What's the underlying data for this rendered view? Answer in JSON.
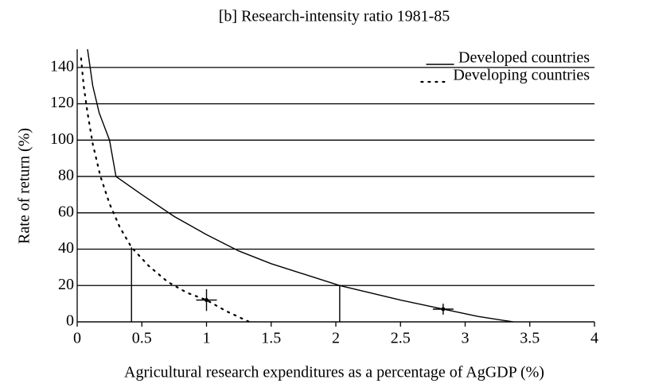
{
  "chart_data": {
    "type": "line",
    "title": "[b] Research-intensity ratio 1981-85",
    "x_label": "Agricultural research expenditures as a percentage of AgGDP (%)",
    "y_label": "Rate of return (%)",
    "xlim": [
      0,
      4
    ],
    "ylim": [
      0,
      150
    ],
    "xticks": [
      0,
      0.5,
      1,
      1.5,
      2,
      2.5,
      3,
      3.5,
      4
    ],
    "yticks": [
      0,
      20,
      40,
      60,
      80,
      100,
      120,
      140
    ],
    "grid": true,
    "legend": "top-right",
    "series": [
      {
        "name": "Developed countries",
        "color": "#000000",
        "style": "solid",
        "x": [
          0.08,
          0.12,
          0.17,
          0.25,
          0.3,
          0.5,
          0.75,
          1.0,
          1.25,
          1.5,
          2.03,
          2.5,
          2.83,
          3.1,
          3.37
        ],
        "values": [
          150,
          130,
          115,
          100,
          80,
          70,
          58,
          48,
          39,
          32,
          20,
          12,
          7,
          3,
          0
        ]
      },
      {
        "name": "Developing countries",
        "color": "#000000",
        "style": "dotted",
        "x": [
          0.03,
          0.05,
          0.08,
          0.12,
          0.18,
          0.25,
          0.33,
          0.42,
          0.55,
          0.7,
          0.85,
          1.0,
          1.15,
          1.33
        ],
        "values": [
          145,
          130,
          115,
          98,
          80,
          65,
          52,
          41,
          31,
          22,
          16,
          12,
          6,
          0
        ]
      }
    ],
    "droplines": [
      {
        "x": 0.42,
        "y": 41
      },
      {
        "x": 2.03,
        "y": 20
      }
    ],
    "points": [
      {
        "x": 1.0,
        "y": 12,
        "xerr": 0.08,
        "yerr": 6
      },
      {
        "x": 2.83,
        "y": 7,
        "xerr": 0.08,
        "yerr": 3
      }
    ]
  }
}
